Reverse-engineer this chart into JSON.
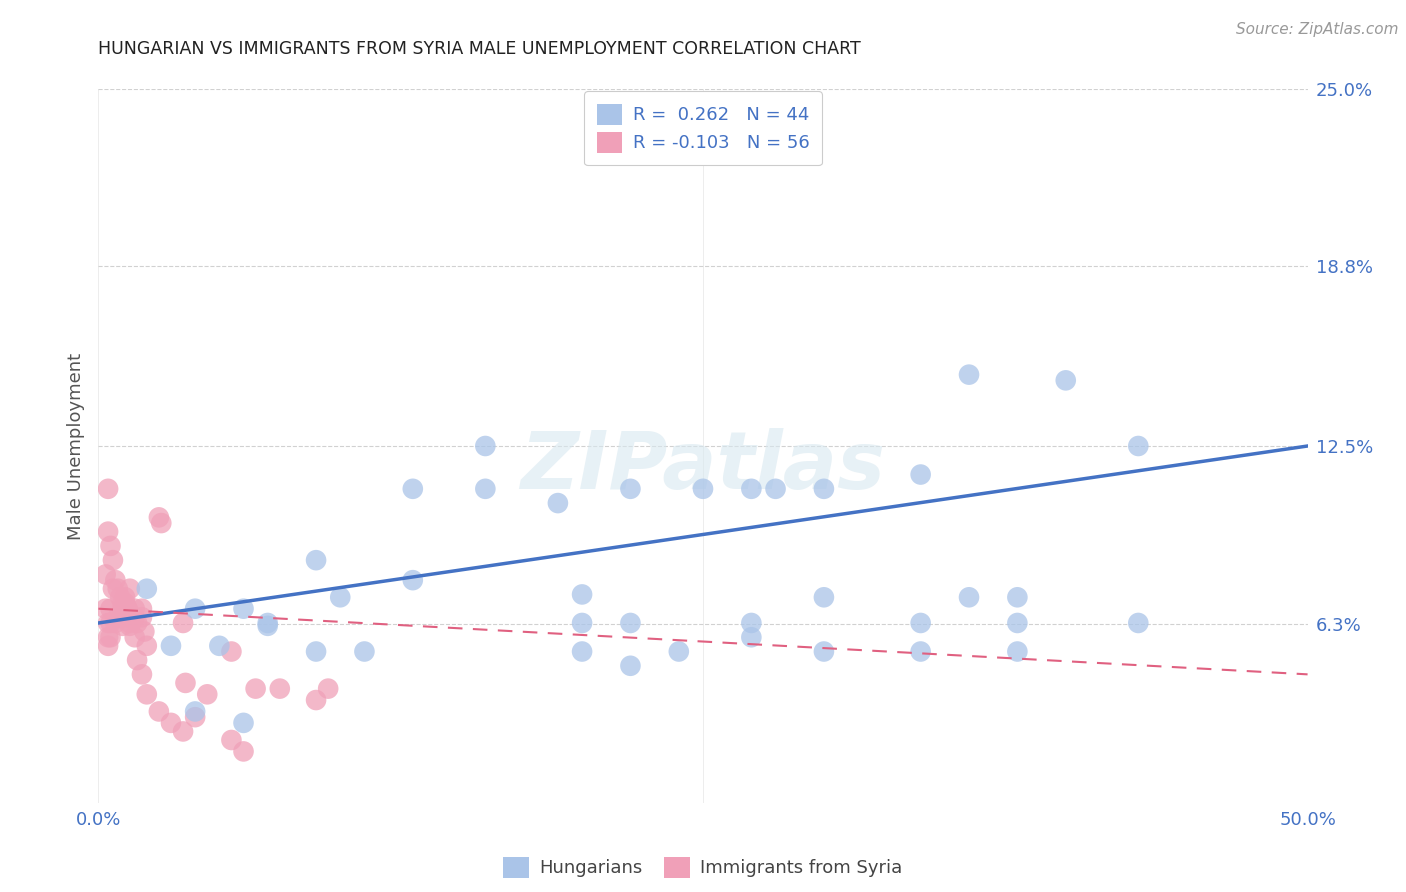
{
  "title": "HUNGARIAN VS IMMIGRANTS FROM SYRIA MALE UNEMPLOYMENT CORRELATION CHART",
  "source": "Source: ZipAtlas.com",
  "ylabel": "Male Unemployment",
  "xlim": [
    0.0,
    0.5
  ],
  "ylim": [
    0.0,
    0.25
  ],
  "legend1_r": " 0.262",
  "legend1_n": "44",
  "legend2_r": "-0.103",
  "legend2_n": "56",
  "blue_color": "#aac4e8",
  "pink_color": "#f0a0b8",
  "line_blue": "#4472c4",
  "line_pink": "#e06080",
  "watermark": "ZIPatlas",
  "blue_line_x0": 0.0,
  "blue_line_y0": 0.063,
  "blue_line_x1": 0.5,
  "blue_line_y1": 0.125,
  "pink_line_x0": 0.0,
  "pink_line_y0": 0.068,
  "pink_line_x1": 0.5,
  "pink_line_y1": 0.045,
  "blue_scatter_x": [
    0.02,
    0.04,
    0.06,
    0.07,
    0.05,
    0.03,
    0.09,
    0.1,
    0.13,
    0.16,
    0.19,
    0.2,
    0.22,
    0.25,
    0.27,
    0.2,
    0.22,
    0.27,
    0.3,
    0.34,
    0.36,
    0.38,
    0.3,
    0.36,
    0.4,
    0.43,
    0.28,
    0.13,
    0.16,
    0.07,
    0.09,
    0.11,
    0.04,
    0.06,
    0.2,
    0.24,
    0.27,
    0.3,
    0.34,
    0.38,
    0.43,
    0.22,
    0.34,
    0.38
  ],
  "blue_scatter_y": [
    0.075,
    0.068,
    0.068,
    0.062,
    0.055,
    0.055,
    0.085,
    0.072,
    0.078,
    0.11,
    0.105,
    0.073,
    0.11,
    0.11,
    0.11,
    0.063,
    0.063,
    0.063,
    0.072,
    0.063,
    0.072,
    0.072,
    0.11,
    0.15,
    0.148,
    0.125,
    0.11,
    0.11,
    0.125,
    0.063,
    0.053,
    0.053,
    0.032,
    0.028,
    0.053,
    0.053,
    0.058,
    0.053,
    0.053,
    0.053,
    0.063,
    0.048,
    0.115,
    0.063
  ],
  "pink_scatter_x": [
    0.003,
    0.004,
    0.004,
    0.004,
    0.005,
    0.005,
    0.005,
    0.006,
    0.007,
    0.008,
    0.01,
    0.01,
    0.011,
    0.012,
    0.012,
    0.013,
    0.013,
    0.015,
    0.015,
    0.016,
    0.018,
    0.018,
    0.019,
    0.02,
    0.025,
    0.026,
    0.035,
    0.036,
    0.045,
    0.055,
    0.065,
    0.075,
    0.09,
    0.095,
    0.003,
    0.004,
    0.004,
    0.005,
    0.006,
    0.007,
    0.008,
    0.009,
    0.01,
    0.011,
    0.012,
    0.013,
    0.015,
    0.016,
    0.018,
    0.02,
    0.025,
    0.03,
    0.035,
    0.04,
    0.055,
    0.06
  ],
  "pink_scatter_y": [
    0.068,
    0.063,
    0.058,
    0.055,
    0.068,
    0.063,
    0.058,
    0.075,
    0.063,
    0.065,
    0.068,
    0.062,
    0.07,
    0.065,
    0.068,
    0.063,
    0.075,
    0.068,
    0.065,
    0.063,
    0.068,
    0.065,
    0.06,
    0.055,
    0.1,
    0.098,
    0.063,
    0.042,
    0.038,
    0.053,
    0.04,
    0.04,
    0.036,
    0.04,
    0.08,
    0.095,
    0.11,
    0.09,
    0.085,
    0.078,
    0.075,
    0.072,
    0.07,
    0.072,
    0.068,
    0.062,
    0.058,
    0.05,
    0.045,
    0.038,
    0.032,
    0.028,
    0.025,
    0.03,
    0.022,
    0.018
  ],
  "grid_color": "#cccccc",
  "background_color": "#ffffff",
  "tick_label_color": "#4472c4",
  "axis_label_color": "#555555"
}
